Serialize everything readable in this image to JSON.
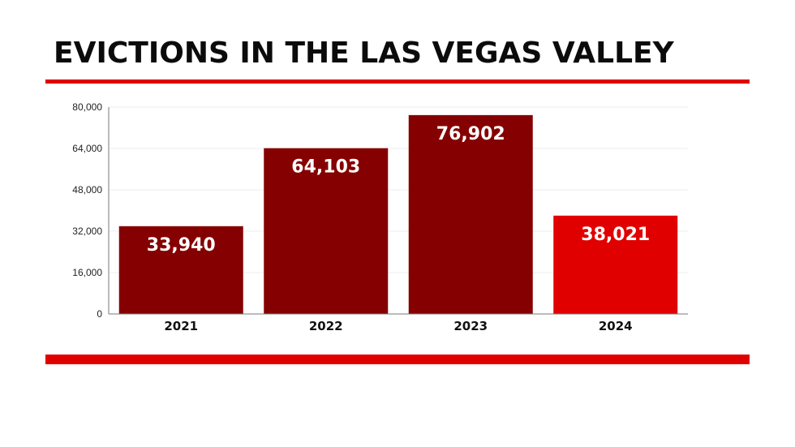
{
  "chart_data": {
    "type": "bar",
    "title": "EVICTIONS IN THE LAS VEGAS VALLEY",
    "categories": [
      "2021",
      "2022",
      "2023",
      "2024"
    ],
    "values": [
      33940,
      64103,
      76902,
      38021
    ],
    "value_labels": [
      "33,940",
      "64,103",
      "76,902",
      "38,021"
    ],
    "yticks": [
      0,
      16000,
      32000,
      48000,
      64000,
      80000
    ],
    "ytick_labels": [
      "0",
      "16,000",
      "32,000",
      "48,000",
      "64,000",
      "80,000"
    ],
    "ylim": [
      0,
      80000
    ],
    "xlabel": "",
    "ylabel": "",
    "grid": true,
    "colors": {
      "bar": "#850000",
      "highlight_bar": "#e10000",
      "accent_rule": "#e10000",
      "grid": "#ececec",
      "axis": "#7a7a7a"
    },
    "highlight_category": "2024"
  }
}
